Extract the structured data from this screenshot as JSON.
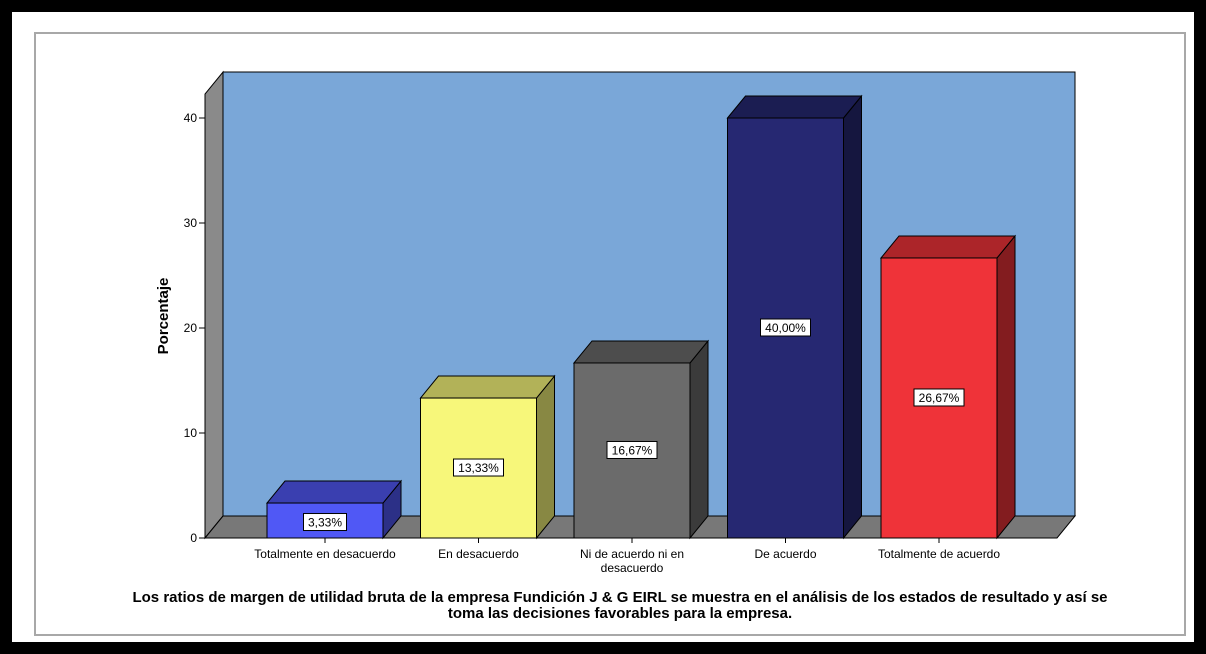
{
  "chart_data": {
    "type": "bar",
    "categories": [
      "Totalmente en desacuerdo",
      "En desacuerdo",
      "Ni de acuerdo ni en desacuerdo",
      "De acuerdo",
      "Totalmente de acuerdo"
    ],
    "values": [
      3.33,
      13.33,
      16.67,
      40.0,
      26.67
    ],
    "data_labels": [
      "3,33%",
      "13,33%",
      "16,67%",
      "40,00%",
      "26,67%"
    ],
    "bar_colors": [
      "#5058f5",
      "#f7f77a",
      "#6b6b6b",
      "#262872",
      "#ef3339"
    ],
    "title": "",
    "xlabel": "Los ratios de margen de utilidad bruta de la empresa Fundición J & G EIRL se muestra en el análisis de los estados de resultado y así se toma las decisiones favorables para la empresa.",
    "ylabel": "Porcentaje",
    "ylim": [
      0,
      45
    ],
    "yticks": [
      0,
      10,
      20,
      30,
      40
    ],
    "style": "3d",
    "background_color": "#7aa7d8",
    "floor_color": "#787878"
  }
}
